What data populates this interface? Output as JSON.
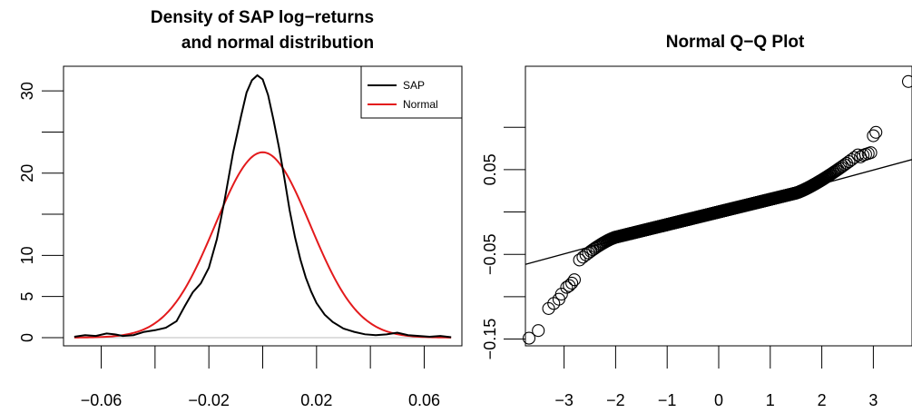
{
  "chart_data": [
    {
      "type": "line",
      "title_lines": [
        "Density of SAP log−returns",
        "and normal distribution"
      ],
      "xlim": [
        -0.074,
        0.074
      ],
      "ylim": [
        -1.0,
        33.0
      ],
      "x_ticks": [
        -0.06,
        -0.04,
        -0.02,
        0.0,
        0.02,
        0.04,
        0.06
      ],
      "x_tick_labels": [
        "−0.06",
        "",
        "−0.02",
        "",
        "0.02",
        "",
        "0.06"
      ],
      "y_ticks": [
        0,
        5,
        10,
        15,
        20,
        25,
        30
      ],
      "y_tick_labels": [
        "0",
        "5",
        "10",
        "",
        "20",
        "",
        "30"
      ],
      "legend": {
        "placement": "top-right",
        "entries": [
          {
            "label": "SAP",
            "color": "#000000"
          },
          {
            "label": "Normal",
            "color": "#e31a1c"
          }
        ]
      },
      "baseline_color": "#bebebe",
      "series": [
        {
          "name": "SAP",
          "color": "#000000",
          "x": [
            -0.07,
            -0.066,
            -0.062,
            -0.058,
            -0.055,
            -0.052,
            -0.048,
            -0.044,
            -0.04,
            -0.036,
            -0.032,
            -0.029,
            -0.026,
            -0.023,
            -0.02,
            -0.017,
            -0.014,
            -0.011,
            -0.008,
            -0.006,
            -0.004,
            -0.002,
            0.0,
            0.002,
            0.004,
            0.006,
            0.008,
            0.01,
            0.012,
            0.014,
            0.016,
            0.018,
            0.02,
            0.023,
            0.026,
            0.03,
            0.034,
            0.038,
            0.042,
            0.046,
            0.05,
            0.054,
            0.058,
            0.062,
            0.066,
            0.07
          ],
          "y": [
            0.1,
            0.3,
            0.2,
            0.5,
            0.4,
            0.2,
            0.3,
            0.7,
            0.9,
            1.2,
            2.0,
            3.8,
            5.5,
            6.6,
            8.5,
            12.0,
            17.0,
            22.5,
            27.0,
            29.8,
            31.3,
            31.9,
            31.4,
            29.5,
            26.5,
            23.2,
            19.5,
            15.5,
            12.2,
            9.5,
            7.3,
            5.6,
            4.2,
            2.8,
            1.9,
            1.1,
            0.7,
            0.4,
            0.3,
            0.4,
            0.6,
            0.3,
            0.2,
            0.1,
            0.2,
            0.05
          ]
        },
        {
          "name": "Normal",
          "color": "#e31a1c",
          "mean": 0.0,
          "sd": 0.0177,
          "x_range": [
            -0.07,
            0.07
          ]
        }
      ]
    },
    {
      "type": "scatter",
      "title": "Normal Q−Q Plot",
      "xlim": [
        -3.75,
        3.75
      ],
      "ylim": [
        -0.158,
        0.172
      ],
      "x_ticks": [
        -3,
        -2,
        -1,
        0,
        1,
        2,
        3
      ],
      "x_tick_labels": [
        "−3",
        "−2",
        "−1",
        "0",
        "1",
        "2",
        "3"
      ],
      "y_ticks": [
        -0.15,
        -0.1,
        -0.05,
        0.0,
        0.05,
        0.1
      ],
      "y_tick_labels": [
        "−0.15",
        "",
        "−0.05",
        "",
        "0.05",
        ""
      ],
      "reference_line": {
        "intercept": 0.0,
        "slope": 0.0165
      },
      "quantile_model": {
        "n": 1300,
        "central_slope": 0.0149,
        "lower_tail": [
          -2.0,
          0.028
        ],
        "upper_tail": [
          1.5,
          0.021
        ]
      },
      "points": [
        [
          -3.68,
          -0.149
        ],
        [
          -3.5,
          -0.14
        ],
        [
          -3.3,
          -0.114
        ],
        [
          -3.2,
          -0.108
        ],
        [
          -3.1,
          -0.103
        ],
        [
          -3.05,
          -0.097
        ],
        [
          -2.95,
          -0.089
        ],
        [
          -2.9,
          -0.087
        ],
        [
          -2.85,
          -0.084
        ],
        [
          -2.8,
          -0.08
        ],
        [
          2.75,
          0.065
        ],
        [
          2.8,
          0.067
        ],
        [
          2.85,
          0.068
        ],
        [
          2.9,
          0.069
        ],
        [
          2.95,
          0.07
        ],
        [
          3.0,
          0.09
        ],
        [
          3.05,
          0.094
        ],
        [
          3.68,
          0.154
        ]
      ]
    }
  ]
}
